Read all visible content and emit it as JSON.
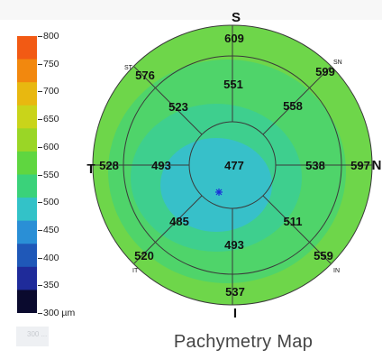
{
  "scale": {
    "ticks": [
      "800",
      "750",
      "700",
      "650",
      "600",
      "550",
      "500",
      "450",
      "400",
      "350",
      "300 µm"
    ],
    "colors": [
      "#f25a14",
      "#f2880e",
      "#e8b810",
      "#c9d41a",
      "#9ad626",
      "#5fd640",
      "#3ad27a",
      "#33c2c8",
      "#2a8fd6",
      "#1f58b8",
      "#1f2b9a",
      "#0a0a2e"
    ],
    "ghost_label": "300 ..."
  },
  "map": {
    "directions": {
      "superior": "S",
      "inferior": "I",
      "temporal": "T",
      "nasal": "N"
    },
    "sector_labels": {
      "st": "ST",
      "sn": "SN",
      "it": "IT",
      "in": "IN"
    },
    "values": {
      "center": "477",
      "inner_s": "551",
      "inner_st": "523",
      "inner_sn": "558",
      "inner_t": "493",
      "inner_n": "538",
      "inner_it": "485",
      "inner_in": "511",
      "inner_i": "493",
      "outer_s": "609",
      "outer_st": "576",
      "outer_sn": "599",
      "outer_t": "528",
      "outer_n": "597",
      "outer_it": "520",
      "outer_in": "559",
      "outer_i": "537"
    },
    "colors": {
      "outer": "#68d64c",
      "mid": "#4fd46a",
      "inner": "#3ecf8e",
      "core": "#37c0c9",
      "line": "#3a3a3a",
      "text": "#111111",
      "apex": "#1a2fd8"
    }
  },
  "caption": "Pachymetry Map"
}
